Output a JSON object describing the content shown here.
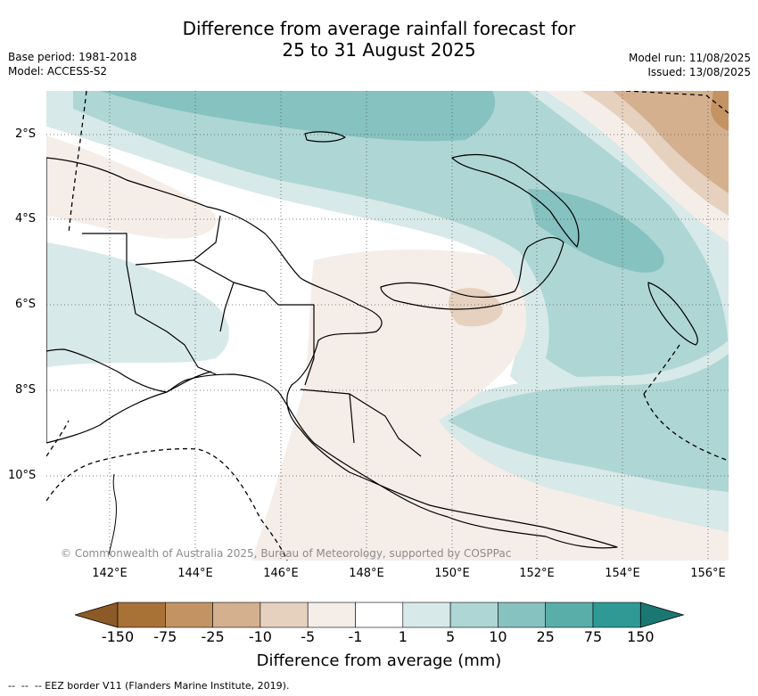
{
  "title_line1": "Difference from average rainfall forecast for",
  "title_line2": "25 to 31 August 2025",
  "meta_left": {
    "base_period": "Base period: 1981-2018",
    "model": "Model: ACCESS-S2"
  },
  "meta_right": {
    "model_run": "Model run: 11/08/2025",
    "issued": "Issued: 13/08/2025"
  },
  "axes": {
    "lat_labels": [
      "2°S",
      "4°S",
      "6°S",
      "8°S",
      "10°S"
    ],
    "lon_labels": [
      "142°E",
      "144°E",
      "146°E",
      "148°E",
      "150°E",
      "152°E",
      "154°E",
      "156°E"
    ]
  },
  "copyright": "© Commonwealth of Australia 2025, Bureau of Meteorology, supported by COSPPac",
  "colorbar": {
    "ticks": [
      "-150",
      "-75",
      "-25",
      "-10",
      "-5",
      "-1",
      "1",
      "5",
      "10",
      "25",
      "75",
      "150"
    ],
    "colors": [
      "#a87136",
      "#c49363",
      "#d5b08e",
      "#e6d1bf",
      "#f5ede8",
      "#ffffff",
      "#d7e9e8",
      "#aed6d5",
      "#85c2c0",
      "#5aaeaa",
      "#2f9a95"
    ],
    "under_color": "#8c5a27",
    "over_color": "#1b7772",
    "label": "Difference from average (mm)"
  },
  "legend_footnote": "-- EEZ border V11 (Flanders Marine Institute, 2019)."
}
